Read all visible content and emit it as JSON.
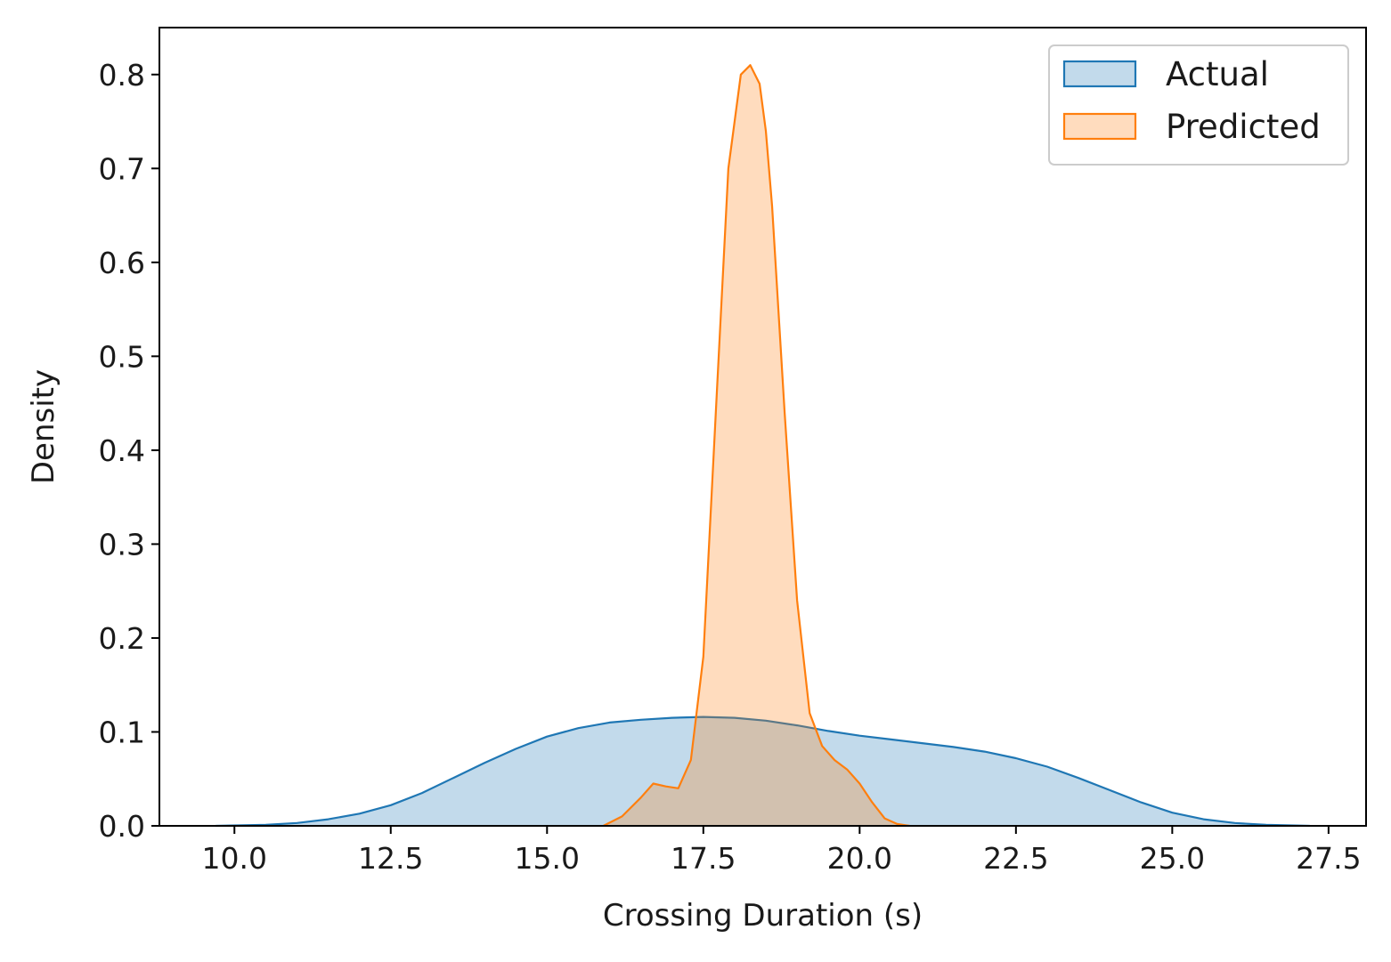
{
  "chart_data": {
    "type": "area",
    "title": "",
    "xlabel": "Crossing Duration (s)",
    "ylabel": "Density",
    "xlim": [
      8.8,
      28.1
    ],
    "ylim": [
      0.0,
      0.85
    ],
    "xticks": [
      10.0,
      12.5,
      15.0,
      17.5,
      20.0,
      22.5,
      25.0,
      27.5
    ],
    "xtick_labels": [
      "10.0",
      "12.5",
      "15.0",
      "17.5",
      "20.0",
      "22.5",
      "25.0",
      "27.5"
    ],
    "yticks": [
      0.0,
      0.1,
      0.2,
      0.3,
      0.4,
      0.5,
      0.6,
      0.7,
      0.8
    ],
    "ytick_labels": [
      "0.0",
      "0.1",
      "0.2",
      "0.3",
      "0.4",
      "0.5",
      "0.6",
      "0.7",
      "0.8"
    ],
    "grid": false,
    "legend_position": "top-right",
    "series": [
      {
        "name": "Actual",
        "color": "#1f77b4",
        "x": [
          9.7,
          10.5,
          11.0,
          11.5,
          12.0,
          12.5,
          13.0,
          13.5,
          14.0,
          14.5,
          15.0,
          15.5,
          16.0,
          16.5,
          17.0,
          17.5,
          18.0,
          18.5,
          19.0,
          19.5,
          20.0,
          20.5,
          21.0,
          21.5,
          22.0,
          22.5,
          23.0,
          23.5,
          24.0,
          24.5,
          25.0,
          25.5,
          26.0,
          26.5,
          27.2
        ],
        "y": [
          0.0,
          0.001,
          0.003,
          0.007,
          0.013,
          0.022,
          0.035,
          0.051,
          0.067,
          0.082,
          0.095,
          0.104,
          0.11,
          0.113,
          0.115,
          0.116,
          0.115,
          0.112,
          0.107,
          0.101,
          0.096,
          0.092,
          0.088,
          0.084,
          0.079,
          0.072,
          0.063,
          0.051,
          0.038,
          0.025,
          0.014,
          0.007,
          0.003,
          0.001,
          0.0
        ]
      },
      {
        "name": "Predicted",
        "color": "#ff7f0e",
        "x": [
          15.9,
          16.2,
          16.5,
          16.7,
          16.9,
          17.1,
          17.3,
          17.5,
          17.7,
          17.9,
          18.1,
          18.25,
          18.4,
          18.5,
          18.6,
          18.8,
          19.0,
          19.2,
          19.4,
          19.6,
          19.8,
          20.0,
          20.2,
          20.4,
          20.6,
          20.8
        ],
        "y": [
          0.0,
          0.01,
          0.03,
          0.045,
          0.042,
          0.04,
          0.07,
          0.18,
          0.44,
          0.7,
          0.8,
          0.81,
          0.79,
          0.74,
          0.66,
          0.44,
          0.24,
          0.12,
          0.085,
          0.07,
          0.06,
          0.045,
          0.025,
          0.008,
          0.002,
          0.0
        ]
      }
    ]
  }
}
